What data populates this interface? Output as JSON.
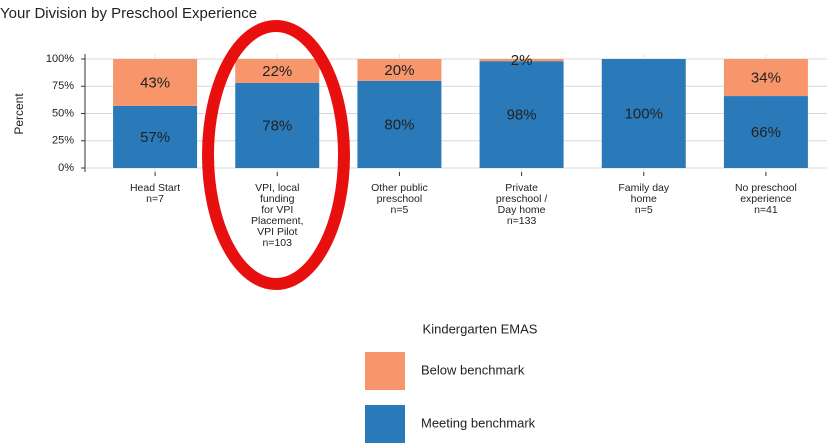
{
  "chart_data": {
    "type": "stacked_bar",
    "title": "Your Division by Preschool Experience",
    "y_label": "Percent",
    "categories": [
      [
        "Head Start",
        "n=7"
      ],
      [
        "VPI, local",
        "funding",
        "for VPI",
        "Placement,",
        "VPI Pilot",
        "n=103"
      ],
      [
        "Other public",
        "preschool",
        "n=5"
      ],
      [
        "Private",
        "preschool /",
        "Day home",
        "n=133"
      ],
      [
        "Family day",
        "home",
        "n=5"
      ],
      [
        "No preschool",
        "experience",
        "n=41"
      ]
    ],
    "series": [
      {
        "name": "Meeting benchmark",
        "color": "#2a7ab9",
        "values": [
          57,
          78,
          80,
          98,
          100,
          66
        ],
        "value_labels": [
          "57%",
          "78%",
          "80%",
          "98%",
          "100%",
          "66%"
        ]
      },
      {
        "name": "Below benchmark",
        "color": "#f7966b",
        "values": [
          43,
          22,
          20,
          2,
          0,
          34
        ],
        "value_labels": [
          "43%",
          "22%",
          "20%",
          "2%",
          null,
          "34%"
        ]
      }
    ],
    "ylim": [
      0,
      100
    ],
    "yticks": [
      {
        "value": 0,
        "label": "0%"
      },
      {
        "value": 25,
        "label": "25%"
      },
      {
        "value": 50,
        "label": "50%"
      },
      {
        "value": 75,
        "label": "75%"
      },
      {
        "value": 100,
        "label": "100%"
      }
    ],
    "grid": true,
    "legend_title": "Kindergarten EMAS",
    "legend": "bottom"
  }
}
